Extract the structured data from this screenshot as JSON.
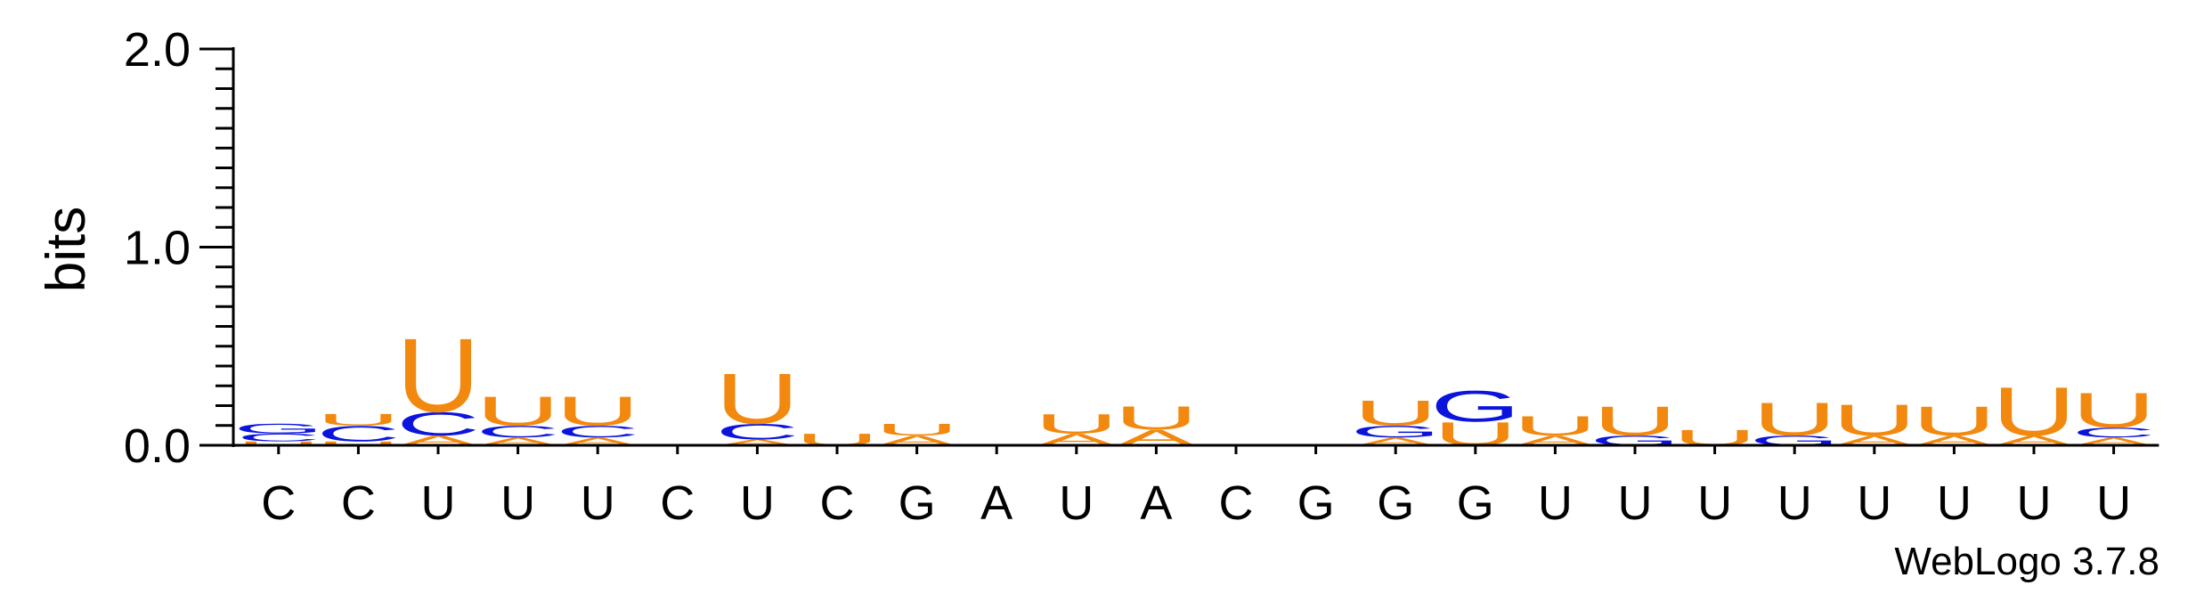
{
  "chart_data": {
    "type": "sequence-logo",
    "ylabel": "bits",
    "ylim": [
      0,
      2.0
    ],
    "yticks_labeled": [
      {
        "value": 0.0,
        "label": "0.0"
      },
      {
        "value": 1.0,
        "label": "1.0"
      },
      {
        "value": 2.0,
        "label": "2.0"
      }
    ],
    "minor_tick_step": 0.1,
    "consensus": [
      "C",
      "C",
      "U",
      "U",
      "U",
      "C",
      "U",
      "C",
      "G",
      "A",
      "U",
      "A",
      "C",
      "G",
      "G",
      "G",
      "U",
      "U",
      "U",
      "U",
      "U",
      "U",
      "U",
      "U"
    ],
    "letter_colors": {
      "A": "#f2880e",
      "U": "#f2880e",
      "C": "#0b14dd",
      "G": "#0b14dd"
    },
    "columns": [
      [
        [
          "U",
          0.02
        ],
        [
          "C",
          0.04
        ],
        [
          "G",
          0.05
        ]
      ],
      [
        [
          "U",
          0.02
        ],
        [
          "C",
          0.08
        ],
        [
          "U",
          0.06
        ]
      ],
      [
        [
          "A",
          0.05
        ],
        [
          "C",
          0.12
        ],
        [
          "U",
          0.38
        ]
      ],
      [
        [
          "A",
          0.04
        ],
        [
          "C",
          0.06
        ],
        [
          "U",
          0.15
        ]
      ],
      [
        [
          "A",
          0.04
        ],
        [
          "C",
          0.06
        ],
        [
          "U",
          0.15
        ]
      ],
      [],
      [
        [
          "A",
          0.03
        ],
        [
          "C",
          0.08
        ],
        [
          "U",
          0.26
        ]
      ],
      [
        [
          "U",
          0.06
        ]
      ],
      [
        [
          "A",
          0.05
        ],
        [
          "U",
          0.06
        ]
      ],
      [],
      [
        [
          "A",
          0.06
        ],
        [
          "U",
          0.1
        ]
      ],
      [
        [
          "A",
          0.08
        ],
        [
          "U",
          0.12
        ]
      ],
      [],
      [],
      [
        [
          "A",
          0.04
        ],
        [
          "G",
          0.06
        ],
        [
          "U",
          0.13
        ]
      ],
      [
        [
          "U",
          0.12
        ],
        [
          "G",
          0.16
        ]
      ],
      [
        [
          "A",
          0.05
        ],
        [
          "U",
          0.1
        ]
      ],
      [
        [
          "G",
          0.05
        ],
        [
          "U",
          0.15
        ]
      ],
      [
        [
          "U",
          0.08
        ]
      ],
      [
        [
          "G",
          0.05
        ],
        [
          "U",
          0.17
        ]
      ],
      [
        [
          "A",
          0.05
        ],
        [
          "U",
          0.16
        ]
      ],
      [
        [
          "A",
          0.05
        ],
        [
          "U",
          0.15
        ]
      ],
      [
        [
          "A",
          0.05
        ],
        [
          "U",
          0.25
        ]
      ],
      [
        [
          "A",
          0.04
        ],
        [
          "C",
          0.05
        ],
        [
          "U",
          0.18
        ]
      ]
    ],
    "footer": "WebLogo 3.7.8"
  }
}
